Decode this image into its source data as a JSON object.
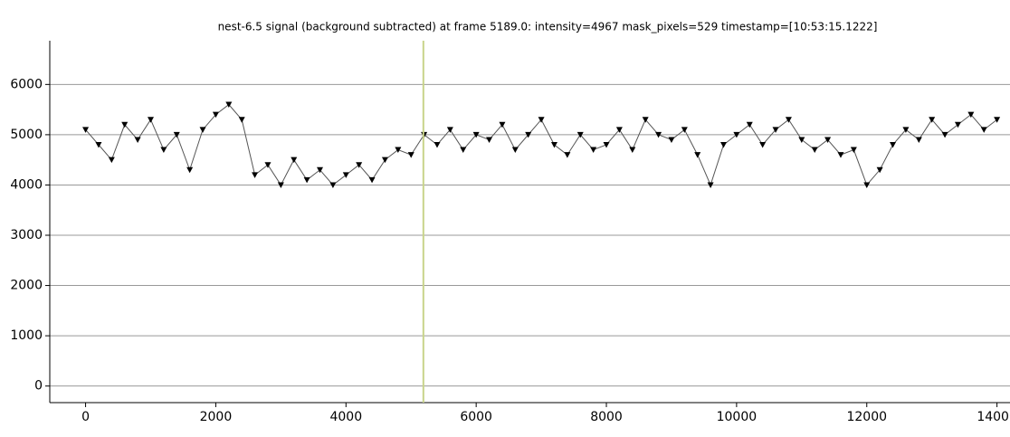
{
  "chart_data": {
    "type": "line",
    "title": "nest-6.5 signal (background subtracted) at frame 5189.0: intensity=4967 mask_pixels=529 timestamp=[10:53:15.1222]",
    "x": [
      0,
      200,
      400,
      600,
      800,
      1000,
      1200,
      1400,
      1600,
      1800,
      2000,
      2200,
      2400,
      2600,
      2800,
      3000,
      3200,
      3400,
      3600,
      3800,
      4000,
      4200,
      4400,
      4600,
      4800,
      5000,
      5200,
      5400,
      5600,
      5800,
      6000,
      6200,
      6400,
      6600,
      6800,
      7000,
      7200,
      7400,
      7600,
      7800,
      8000,
      8200,
      8400,
      8600,
      8800,
      9000,
      9200,
      9400,
      9600,
      9800,
      10000,
      10200,
      10400,
      10600,
      10800,
      11000,
      11200,
      11400,
      11600,
      11800,
      12000,
      12200,
      12400,
      12600,
      12800,
      13000,
      13200,
      13400,
      13600,
      13800,
      14000
    ],
    "series": [
      {
        "color": "#000000",
        "values": [
          5100,
          4800,
          4500,
          5200,
          4900,
          5300,
          4700,
          5000,
          4300,
          5100,
          5400,
          5600,
          5300,
          4200,
          4400,
          4000,
          4500,
          4100,
          4300,
          4000,
          4200,
          4400,
          4100,
          4500,
          4700,
          4600,
          5000,
          4800,
          5100,
          4700,
          5000,
          4900,
          5200,
          4700,
          5000,
          5300,
          4800,
          4600,
          5000,
          4700,
          4800,
          5100,
          4700,
          5300,
          5000,
          4900,
          5100,
          4600,
          4000,
          4800,
          5000,
          5200,
          4800,
          5100,
          5300,
          4900,
          4700,
          4900,
          4600,
          4700,
          4000,
          4300,
          4800,
          5100,
          4900,
          5300,
          5000,
          5200,
          5400,
          5100,
          5300
        ]
      }
    ],
    "frame_marker": 5189,
    "frame_marker_color": "#c9d48a",
    "xlim": [
      -550,
      14200
    ],
    "ylim": [
      -330,
      6870
    ],
    "xticks": [
      0,
      2000,
      4000,
      6000,
      8000,
      10000,
      12000,
      14000
    ],
    "yticks": [
      0,
      1000,
      2000,
      3000,
      4000,
      5000,
      6000
    ],
    "grid": true
  }
}
